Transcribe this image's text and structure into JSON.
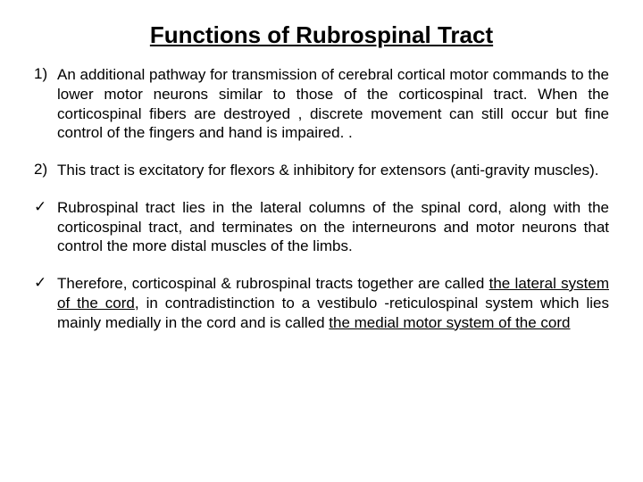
{
  "title": {
    "text": "Functions of Rubrospinal Tract",
    "fontsize_pt": 26,
    "color": "#000000",
    "font_family": "Arial",
    "font_weight": "bold",
    "underline": true
  },
  "body_style": {
    "font_family": "Comic Sans MS",
    "fontsize_pt": 17,
    "color": "#000000",
    "line_height": 1.28,
    "align": "justify"
  },
  "items": [
    {
      "marker": "1)",
      "marker_type": "number",
      "spans": [
        {
          "text": "An additional pathway for transmission of cerebral cortical motor commands to the lower motor neurons similar to those of the corticospinal tract. When the  corticospinal fibers are destroyed , discrete movement can still occur but fine  control of the fingers and hand is impaired. .",
          "underline": false
        }
      ]
    },
    {
      "marker": "2)",
      "marker_type": "number",
      "spans": [
        {
          "text": "This tract is excitatory for flexors & inhibitory for extensors (anti-gravity muscles).",
          "underline": false
        }
      ]
    },
    {
      "marker": "✓",
      "marker_type": "check",
      "spans": [
        {
          "text": "Rubrospinal tract lies in the lateral columns of the spinal cord, along with the corticospinal tract, and terminates on the interneurons and motor neurons that control the more distal muscles of the limbs.",
          "underline": false
        }
      ]
    },
    {
      "marker": "✓",
      "marker_type": "check",
      "spans": [
        {
          "text": "Therefore, corticospinal & rubrospinal tracts together are called ",
          "underline": false
        },
        {
          "text": "the lateral system of the cord",
          "underline": true
        },
        {
          "text": ", in contradistinction to a vestibulo -reticulospinal system which lies mainly medially in the cord and is called ",
          "underline": false
        },
        {
          "text": "the medial motor system of the cord",
          "underline": true
        }
      ]
    }
  ],
  "background_color": "#ffffff"
}
